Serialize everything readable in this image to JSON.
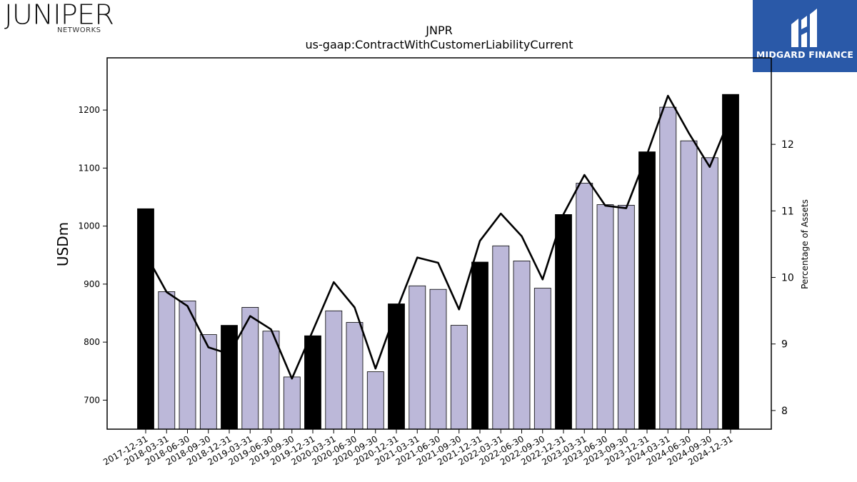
{
  "logos": {
    "left_brand": "JUNIPER",
    "left_sub": "NETWORKS",
    "right_brand": "MIDGARD FINANCE"
  },
  "colors": {
    "bar_q4": "#000000",
    "bar_other": "#bcb8d9",
    "line": "#000000",
    "logo_bg": "#2a59a8"
  },
  "chart_data": {
    "type": "bar",
    "title": "JNPR",
    "subtitle": "us-gaap:ContractWithCustomerLiabilityCurrent",
    "ylabel": "USDm",
    "y2label": "Percentage of Assets",
    "ylim": [
      650,
      1290
    ],
    "y2lim": [
      7.72,
      13.3
    ],
    "yticks": [
      700,
      800,
      900,
      1000,
      1100,
      1200
    ],
    "y2ticks": [
      8,
      9,
      10,
      11,
      12
    ],
    "grid": false,
    "categories": [
      "2017-12-31",
      "2018-03-31",
      "2018-06-30",
      "2018-09-30",
      "2018-12-31",
      "2019-03-31",
      "2019-06-30",
      "2019-09-30",
      "2019-12-31",
      "2020-03-31",
      "2020-06-30",
      "2020-09-30",
      "2020-12-31",
      "2021-03-31",
      "2021-06-30",
      "2021-09-30",
      "2021-12-31",
      "2022-03-31",
      "2022-06-30",
      "2022-09-30",
      "2022-12-31",
      "2023-03-31",
      "2023-06-30",
      "2023-09-30",
      "2023-12-31",
      "2024-03-31",
      "2024-06-30",
      "2024-09-30",
      "2024-12-31"
    ],
    "series": [
      {
        "type": "bar",
        "axis": "left",
        "values": [
          1030,
          887,
          871,
          813,
          829,
          860,
          819,
          740,
          811,
          854,
          834,
          749,
          866,
          897,
          891,
          829,
          938,
          966,
          940,
          893,
          1020,
          1074,
          1037,
          1036,
          1128,
          1205,
          1147,
          1118,
          1227
        ]
      },
      {
        "type": "line",
        "axis": "right",
        "values": [
          10.35,
          9.78,
          9.57,
          8.95,
          8.85,
          9.42,
          9.22,
          8.48,
          9.2,
          9.93,
          9.55,
          8.63,
          9.5,
          10.3,
          10.22,
          9.52,
          10.55,
          10.96,
          10.62,
          9.97,
          10.95,
          11.54,
          11.08,
          11.04,
          11.85,
          12.73,
          12.17,
          11.66,
          12.42
        ]
      }
    ]
  }
}
